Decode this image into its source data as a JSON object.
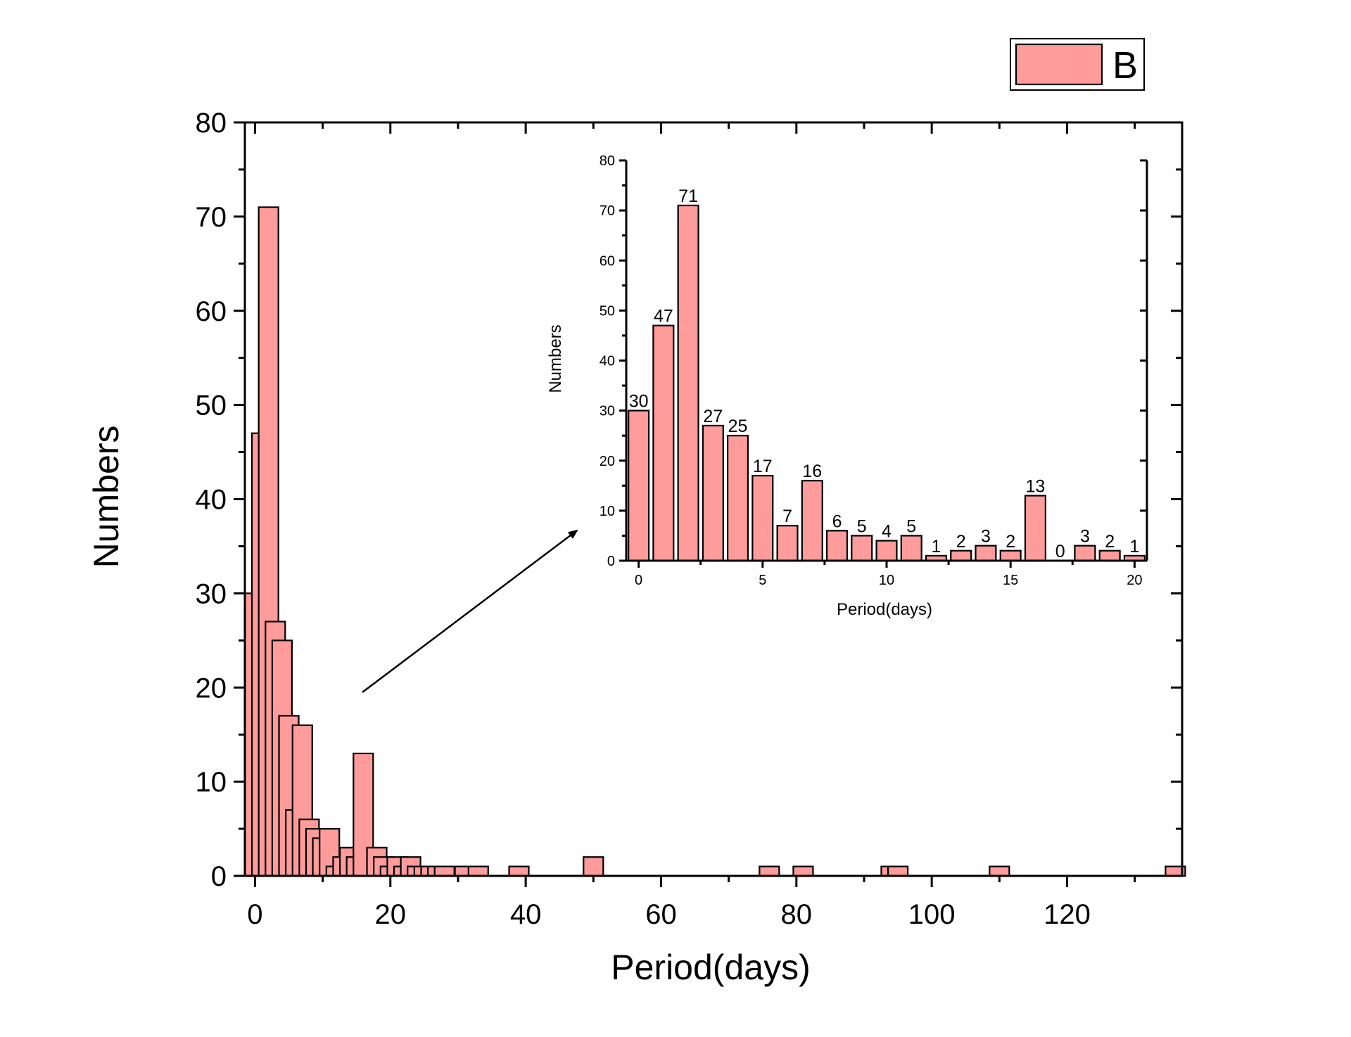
{
  "legend": {
    "label": "B",
    "color": "#fe9b9b"
  },
  "chart_data": [
    {
      "type": "bar",
      "role": "main-histogram",
      "xlabel": "Period(days)",
      "ylabel": "Numbers",
      "xlim": [
        -1.5,
        137
      ],
      "ylim": [
        0,
        80
      ],
      "xticks": [
        0,
        20,
        40,
        60,
        80,
        100,
        120
      ],
      "yticks": [
        0,
        10,
        20,
        30,
        40,
        50,
        60,
        70,
        80
      ],
      "bar_color": "#fe9b9b",
      "bars": [
        {
          "x": 0,
          "value": 30
        },
        {
          "x": 1,
          "value": 47
        },
        {
          "x": 2,
          "value": 71
        },
        {
          "x": 3,
          "value": 27
        },
        {
          "x": 4,
          "value": 25
        },
        {
          "x": 5,
          "value": 17
        },
        {
          "x": 6,
          "value": 7
        },
        {
          "x": 7,
          "value": 16
        },
        {
          "x": 8,
          "value": 6
        },
        {
          "x": 9,
          "value": 5
        },
        {
          "x": 10,
          "value": 4
        },
        {
          "x": 11,
          "value": 5
        },
        {
          "x": 12,
          "value": 1
        },
        {
          "x": 13,
          "value": 2
        },
        {
          "x": 14,
          "value": 3
        },
        {
          "x": 15,
          "value": 2
        },
        {
          "x": 16,
          "value": 13
        },
        {
          "x": 17,
          "value": 0
        },
        {
          "x": 18,
          "value": 3
        },
        {
          "x": 19,
          "value": 2
        },
        {
          "x": 20,
          "value": 1
        },
        {
          "x": 21,
          "value": 2
        },
        {
          "x": 22,
          "value": 1
        },
        {
          "x": 23,
          "value": 2
        },
        {
          "x": 24,
          "value": 1
        },
        {
          "x": 25,
          "value": 1
        },
        {
          "x": 26,
          "value": 1
        },
        {
          "x": 27,
          "value": 1
        },
        {
          "x": 28,
          "value": 1
        },
        {
          "x": 31,
          "value": 1
        },
        {
          "x": 33,
          "value": 1
        },
        {
          "x": 39,
          "value": 1
        },
        {
          "x": 50,
          "value": 2
        },
        {
          "x": 76,
          "value": 1
        },
        {
          "x": 81,
          "value": 1
        },
        {
          "x": 94,
          "value": 1
        },
        {
          "x": 95,
          "value": 1
        },
        {
          "x": 110,
          "value": 1
        },
        {
          "x": 136,
          "value": 1
        }
      ]
    },
    {
      "type": "bar",
      "role": "inset-zoom",
      "xlabel": "Period(days)",
      "ylabel": "Numbers",
      "xlim": [
        -0.5,
        20.5
      ],
      "ylim": [
        0,
        80
      ],
      "xticks": [
        0,
        5,
        10,
        15,
        20
      ],
      "yticks": [
        0,
        10,
        20,
        30,
        40,
        50,
        60,
        70,
        80
      ],
      "bar_color": "#fe9b9b",
      "categories": [
        0,
        1,
        2,
        3,
        4,
        5,
        6,
        7,
        8,
        9,
        10,
        11,
        12,
        13,
        14,
        15,
        16,
        17,
        18,
        19,
        20
      ],
      "values": [
        30,
        47,
        71,
        27,
        25,
        17,
        7,
        16,
        6,
        5,
        4,
        5,
        1,
        2,
        3,
        2,
        13,
        0,
        3,
        2,
        1
      ],
      "data_labels": [
        "30",
        "47",
        "71",
        "27",
        "25",
        "17",
        "7",
        "16",
        "6",
        "5",
        "4",
        "5",
        "1",
        "2",
        "3",
        "2",
        "13",
        "0",
        "3",
        "2",
        "1"
      ]
    }
  ]
}
